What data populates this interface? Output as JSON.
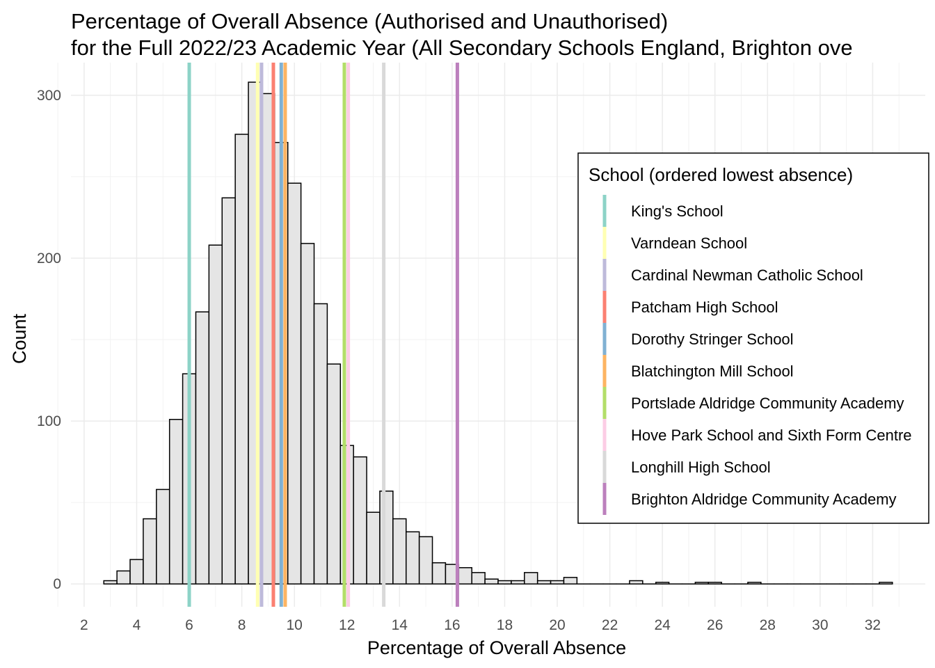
{
  "chart_data": {
    "type": "bar",
    "title_line1": "Percentage of Overall Absence (Authorised and Unauthorised)",
    "title_line2": "for the Full 2022/23 Academic Year (All Secondary Schools England, Brighton ove",
    "xlabel": "Percentage of Overall Absence",
    "ylabel": "Count",
    "xlim": [
      1.5,
      34.0
    ],
    "ylim": [
      -14,
      320
    ],
    "x_ticks": [
      2,
      4,
      6,
      8,
      10,
      12,
      14,
      16,
      18,
      20,
      22,
      24,
      26,
      28,
      30,
      32
    ],
    "y_ticks": [
      0,
      100,
      200,
      300
    ],
    "grid": true,
    "bin_width": 0.5,
    "bins": [
      {
        "x0": 2.75,
        "count": 2
      },
      {
        "x0": 3.25,
        "count": 8
      },
      {
        "x0": 3.75,
        "count": 15
      },
      {
        "x0": 4.25,
        "count": 40
      },
      {
        "x0": 4.75,
        "count": 58
      },
      {
        "x0": 5.25,
        "count": 101
      },
      {
        "x0": 5.75,
        "count": 129
      },
      {
        "x0": 6.25,
        "count": 167
      },
      {
        "x0": 6.75,
        "count": 208
      },
      {
        "x0": 7.25,
        "count": 237
      },
      {
        "x0": 7.75,
        "count": 276
      },
      {
        "x0": 8.25,
        "count": 308
      },
      {
        "x0": 8.75,
        "count": 301
      },
      {
        "x0": 9.25,
        "count": 271
      },
      {
        "x0": 9.75,
        "count": 246
      },
      {
        "x0": 10.25,
        "count": 209
      },
      {
        "x0": 10.75,
        "count": 172
      },
      {
        "x0": 11.25,
        "count": 135
      },
      {
        "x0": 11.75,
        "count": 85
      },
      {
        "x0": 12.25,
        "count": 78
      },
      {
        "x0": 12.75,
        "count": 44
      },
      {
        "x0": 13.25,
        "count": 57
      },
      {
        "x0": 13.75,
        "count": 40
      },
      {
        "x0": 14.25,
        "count": 32
      },
      {
        "x0": 14.75,
        "count": 29
      },
      {
        "x0": 15.25,
        "count": 13
      },
      {
        "x0": 15.75,
        "count": 12
      },
      {
        "x0": 16.25,
        "count": 10
      },
      {
        "x0": 16.75,
        "count": 7
      },
      {
        "x0": 17.25,
        "count": 3
      },
      {
        "x0": 17.75,
        "count": 2
      },
      {
        "x0": 18.25,
        "count": 2
      },
      {
        "x0": 18.75,
        "count": 7
      },
      {
        "x0": 19.25,
        "count": 2
      },
      {
        "x0": 19.75,
        "count": 2
      },
      {
        "x0": 20.25,
        "count": 4
      },
      {
        "x0": 20.75,
        "count": 0
      },
      {
        "x0": 21.25,
        "count": 0
      },
      {
        "x0": 21.75,
        "count": 0
      },
      {
        "x0": 22.25,
        "count": 0
      },
      {
        "x0": 22.75,
        "count": 2
      },
      {
        "x0": 23.25,
        "count": 0
      },
      {
        "x0": 23.75,
        "count": 1
      },
      {
        "x0": 24.25,
        "count": 0
      },
      {
        "x0": 24.75,
        "count": 0
      },
      {
        "x0": 25.25,
        "count": 1
      },
      {
        "x0": 25.75,
        "count": 1
      },
      {
        "x0": 26.25,
        "count": 0
      },
      {
        "x0": 26.75,
        "count": 0
      },
      {
        "x0": 27.25,
        "count": 1
      },
      {
        "x0": 27.75,
        "count": 0
      },
      {
        "x0": 28.25,
        "count": 0
      },
      {
        "x0": 28.75,
        "count": 0
      },
      {
        "x0": 29.25,
        "count": 0
      },
      {
        "x0": 29.75,
        "count": 0
      },
      {
        "x0": 30.25,
        "count": 0
      },
      {
        "x0": 30.75,
        "count": 0
      },
      {
        "x0": 31.25,
        "count": 0
      },
      {
        "x0": 31.75,
        "count": 0
      },
      {
        "x0": 32.25,
        "count": 1
      }
    ],
    "bar_fill": "#e5e5e5",
    "bar_stroke": "#000000",
    "legend_title": "School (ordered lowest absence)",
    "legend_position": "right",
    "schools": [
      {
        "name": "King's School",
        "value": 6.0,
        "color": "#8dd3c7"
      },
      {
        "name": "Varndean School",
        "value": 8.6,
        "color": "#ffffb3"
      },
      {
        "name": "Cardinal Newman Catholic School",
        "value": 8.75,
        "color": "#bebada"
      },
      {
        "name": "Patcham High School",
        "value": 9.2,
        "color": "#fb8072"
      },
      {
        "name": "Dorothy Stringer School",
        "value": 9.5,
        "color": "#80b1d3"
      },
      {
        "name": "Blatchington Mill School",
        "value": 9.65,
        "color": "#fdb462"
      },
      {
        "name": "Portslade Aldridge Community Academy",
        "value": 11.9,
        "color": "#b3de69"
      },
      {
        "name": "Hove Park School and Sixth Form Centre",
        "value": 12.05,
        "color": "#fccde5"
      },
      {
        "name": "Longhill High School",
        "value": 13.4,
        "color": "#d9d9d9"
      },
      {
        "name": "Brighton Aldridge Community Academy",
        "value": 16.2,
        "color": "#bc80bd"
      }
    ]
  }
}
